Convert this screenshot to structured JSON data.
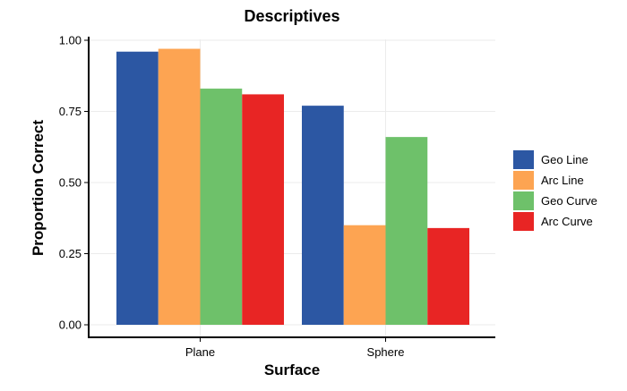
{
  "chart_data": {
    "type": "bar",
    "title": "Descriptives",
    "xlabel": "Surface",
    "ylabel": "Proportion Correct",
    "categories": [
      "Plane",
      "Sphere"
    ],
    "series": [
      {
        "name": "Geo Line",
        "color": "#2c57a3",
        "values": [
          0.96,
          0.77
        ]
      },
      {
        "name": "Arc Line",
        "color": "#fda452",
        "values": [
          0.97,
          0.35
        ]
      },
      {
        "name": "Geo Curve",
        "color": "#6ec16a",
        "values": [
          0.83,
          0.66
        ]
      },
      {
        "name": "Arc Curve",
        "color": "#e82524",
        "values": [
          0.81,
          0.34
        ]
      }
    ],
    "ylim": [
      0,
      1
    ],
    "yticks": [
      "0.00",
      "0.25",
      "0.50",
      "0.75",
      "1.00"
    ],
    "grid": true,
    "legend_position": "right"
  }
}
